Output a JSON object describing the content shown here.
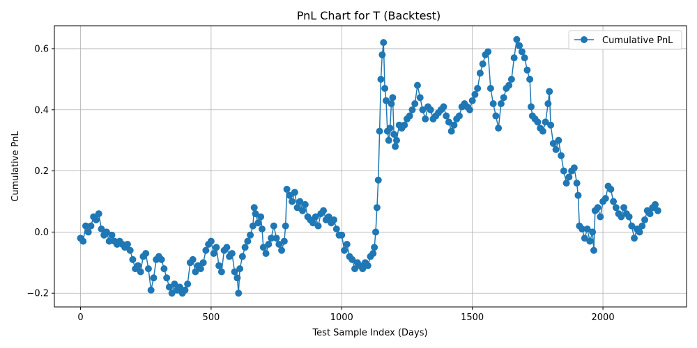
{
  "chart_data": {
    "type": "line",
    "title": "PnL Chart for T (Backtest)",
    "xlabel": "Test Sample Index (Days)",
    "ylabel": "Cumulative PnL",
    "xlim": [
      -100,
      2320
    ],
    "ylim": [
      -0.245,
      0.675
    ],
    "x_ticks": [
      0,
      500,
      1000,
      1500,
      2000
    ],
    "y_ticks": [
      -0.2,
      0.0,
      0.2,
      0.4,
      0.6
    ],
    "x_tick_labels": [
      "0",
      "500",
      "1000",
      "1500",
      "2000"
    ],
    "y_tick_labels": [
      "−0.2",
      "0.0",
      "0.2",
      "0.4",
      "0.6"
    ],
    "grid": true,
    "legend_position": "top-right",
    "series": [
      {
        "name": "Cumulative PnL",
        "color": "#1f77b4",
        "marker": "circle",
        "points": [
          [
            0,
            -0.02
          ],
          [
            10,
            -0.03
          ],
          [
            20,
            0.02
          ],
          [
            30,
            0.0
          ],
          [
            40,
            0.02
          ],
          [
            50,
            0.05
          ],
          [
            60,
            0.04
          ],
          [
            70,
            0.06
          ],
          [
            80,
            0.01
          ],
          [
            90,
            -0.01
          ],
          [
            100,
            0.0
          ],
          [
            110,
            -0.03
          ],
          [
            120,
            -0.01
          ],
          [
            130,
            -0.03
          ],
          [
            140,
            -0.04
          ],
          [
            150,
            -0.03
          ],
          [
            160,
            -0.04
          ],
          [
            170,
            -0.05
          ],
          [
            180,
            -0.04
          ],
          [
            190,
            -0.06
          ],
          [
            200,
            -0.09
          ],
          [
            210,
            -0.12
          ],
          [
            220,
            -0.11
          ],
          [
            230,
            -0.13
          ],
          [
            240,
            -0.08
          ],
          [
            250,
            -0.07
          ],
          [
            260,
            -0.12
          ],
          [
            270,
            -0.19
          ],
          [
            280,
            -0.15
          ],
          [
            290,
            -0.09
          ],
          [
            300,
            -0.08
          ],
          [
            310,
            -0.09
          ],
          [
            320,
            -0.12
          ],
          [
            330,
            -0.15
          ],
          [
            340,
            -0.18
          ],
          [
            350,
            -0.2
          ],
          [
            360,
            -0.17
          ],
          [
            370,
            -0.19
          ],
          [
            380,
            -0.18
          ],
          [
            390,
            -0.2
          ],
          [
            400,
            -0.19
          ],
          [
            410,
            -0.17
          ],
          [
            420,
            -0.1
          ],
          [
            430,
            -0.09
          ],
          [
            440,
            -0.13
          ],
          [
            450,
            -0.11
          ],
          [
            460,
            -0.12
          ],
          [
            470,
            -0.1
          ],
          [
            480,
            -0.06
          ],
          [
            490,
            -0.04
          ],
          [
            500,
            -0.03
          ],
          [
            510,
            -0.07
          ],
          [
            520,
            -0.05
          ],
          [
            530,
            -0.11
          ],
          [
            540,
            -0.13
          ],
          [
            550,
            -0.06
          ],
          [
            560,
            -0.05
          ],
          [
            570,
            -0.08
          ],
          [
            580,
            -0.07
          ],
          [
            590,
            -0.13
          ],
          [
            600,
            -0.15
          ],
          [
            605,
            -0.2
          ],
          [
            610,
            -0.12
          ],
          [
            620,
            -0.08
          ],
          [
            630,
            -0.05
          ],
          [
            640,
            -0.03
          ],
          [
            650,
            -0.01
          ],
          [
            660,
            0.02
          ],
          [
            665,
            0.08
          ],
          [
            670,
            0.06
          ],
          [
            680,
            0.03
          ],
          [
            690,
            0.05
          ],
          [
            695,
            0.01
          ],
          [
            700,
            -0.05
          ],
          [
            710,
            -0.07
          ],
          [
            720,
            -0.04
          ],
          [
            730,
            -0.02
          ],
          [
            740,
            0.02
          ],
          [
            750,
            -0.02
          ],
          [
            760,
            -0.04
          ],
          [
            770,
            -0.06
          ],
          [
            780,
            -0.03
          ],
          [
            785,
            0.02
          ],
          [
            790,
            0.14
          ],
          [
            800,
            0.12
          ],
          [
            810,
            0.1
          ],
          [
            820,
            0.13
          ],
          [
            830,
            0.08
          ],
          [
            840,
            0.1
          ],
          [
            850,
            0.07
          ],
          [
            860,
            0.09
          ],
          [
            870,
            0.05
          ],
          [
            880,
            0.04
          ],
          [
            890,
            0.03
          ],
          [
            900,
            0.05
          ],
          [
            910,
            0.02
          ],
          [
            920,
            0.06
          ],
          [
            930,
            0.07
          ],
          [
            940,
            0.04
          ],
          [
            950,
            0.05
          ],
          [
            960,
            0.03
          ],
          [
            970,
            0.04
          ],
          [
            980,
            0.01
          ],
          [
            990,
            -0.01
          ],
          [
            1000,
            -0.01
          ],
          [
            1010,
            -0.06
          ],
          [
            1020,
            -0.04
          ],
          [
            1030,
            -0.08
          ],
          [
            1040,
            -0.09
          ],
          [
            1050,
            -0.12
          ],
          [
            1060,
            -0.1
          ],
          [
            1070,
            -0.11
          ],
          [
            1080,
            -0.12
          ],
          [
            1090,
            -0.1
          ],
          [
            1100,
            -0.11
          ],
          [
            1110,
            -0.08
          ],
          [
            1120,
            -0.07
          ],
          [
            1125,
            -0.05
          ],
          [
            1130,
            0.0
          ],
          [
            1135,
            0.08
          ],
          [
            1140,
            0.17
          ],
          [
            1145,
            0.33
          ],
          [
            1150,
            0.5
          ],
          [
            1155,
            0.58
          ],
          [
            1160,
            0.62
          ],
          [
            1165,
            0.47
          ],
          [
            1170,
            0.43
          ],
          [
            1175,
            0.33
          ],
          [
            1180,
            0.3
          ],
          [
            1185,
            0.34
          ],
          [
            1190,
            0.42
          ],
          [
            1195,
            0.44
          ],
          [
            1200,
            0.32
          ],
          [
            1205,
            0.28
          ],
          [
            1210,
            0.3
          ],
          [
            1220,
            0.35
          ],
          [
            1230,
            0.34
          ],
          [
            1240,
            0.35
          ],
          [
            1250,
            0.37
          ],
          [
            1260,
            0.38
          ],
          [
            1270,
            0.4
          ],
          [
            1280,
            0.42
          ],
          [
            1290,
            0.48
          ],
          [
            1300,
            0.44
          ],
          [
            1310,
            0.4
          ],
          [
            1320,
            0.37
          ],
          [
            1330,
            0.41
          ],
          [
            1340,
            0.4
          ],
          [
            1350,
            0.37
          ],
          [
            1360,
            0.38
          ],
          [
            1370,
            0.39
          ],
          [
            1380,
            0.4
          ],
          [
            1390,
            0.41
          ],
          [
            1400,
            0.38
          ],
          [
            1410,
            0.36
          ],
          [
            1420,
            0.33
          ],
          [
            1430,
            0.35
          ],
          [
            1440,
            0.37
          ],
          [
            1450,
            0.38
          ],
          [
            1460,
            0.41
          ],
          [
            1470,
            0.42
          ],
          [
            1480,
            0.41
          ],
          [
            1490,
            0.4
          ],
          [
            1500,
            0.43
          ],
          [
            1510,
            0.45
          ],
          [
            1520,
            0.47
          ],
          [
            1530,
            0.52
          ],
          [
            1540,
            0.55
          ],
          [
            1550,
            0.58
          ],
          [
            1560,
            0.59
          ],
          [
            1570,
            0.47
          ],
          [
            1580,
            0.42
          ],
          [
            1590,
            0.38
          ],
          [
            1600,
            0.34
          ],
          [
            1610,
            0.42
          ],
          [
            1620,
            0.44
          ],
          [
            1630,
            0.47
          ],
          [
            1640,
            0.48
          ],
          [
            1650,
            0.5
          ],
          [
            1660,
            0.57
          ],
          [
            1670,
            0.63
          ],
          [
            1680,
            0.61
          ],
          [
            1690,
            0.59
          ],
          [
            1700,
            0.57
          ],
          [
            1710,
            0.53
          ],
          [
            1720,
            0.5
          ],
          [
            1725,
            0.41
          ],
          [
            1730,
            0.38
          ],
          [
            1740,
            0.37
          ],
          [
            1750,
            0.36
          ],
          [
            1760,
            0.34
          ],
          [
            1770,
            0.33
          ],
          [
            1780,
            0.36
          ],
          [
            1790,
            0.42
          ],
          [
            1795,
            0.46
          ],
          [
            1800,
            0.35
          ],
          [
            1810,
            0.29
          ],
          [
            1820,
            0.27
          ],
          [
            1830,
            0.3
          ],
          [
            1840,
            0.25
          ],
          [
            1850,
            0.2
          ],
          [
            1860,
            0.16
          ],
          [
            1870,
            0.18
          ],
          [
            1880,
            0.2
          ],
          [
            1890,
            0.21
          ],
          [
            1900,
            0.16
          ],
          [
            1905,
            0.12
          ],
          [
            1910,
            0.02
          ],
          [
            1920,
            0.01
          ],
          [
            1930,
            -0.02
          ],
          [
            1940,
            0.01
          ],
          [
            1950,
            -0.03
          ],
          [
            1960,
            0.0
          ],
          [
            1965,
            -0.06
          ],
          [
            1970,
            0.07
          ],
          [
            1980,
            0.08
          ],
          [
            1990,
            0.05
          ],
          [
            2000,
            0.1
          ],
          [
            2010,
            0.11
          ],
          [
            2020,
            0.15
          ],
          [
            2030,
            0.14
          ],
          [
            2040,
            0.1
          ],
          [
            2050,
            0.08
          ],
          [
            2060,
            0.06
          ],
          [
            2070,
            0.05
          ],
          [
            2080,
            0.08
          ],
          [
            2090,
            0.06
          ],
          [
            2100,
            0.05
          ],
          [
            2110,
            0.02
          ],
          [
            2120,
            -0.02
          ],
          [
            2130,
            0.01
          ],
          [
            2140,
            0.0
          ],
          [
            2150,
            0.02
          ],
          [
            2160,
            0.04
          ],
          [
            2170,
            0.07
          ],
          [
            2180,
            0.06
          ],
          [
            2190,
            0.08
          ],
          [
            2200,
            0.09
          ],
          [
            2210,
            0.07
          ]
        ]
      }
    ]
  }
}
